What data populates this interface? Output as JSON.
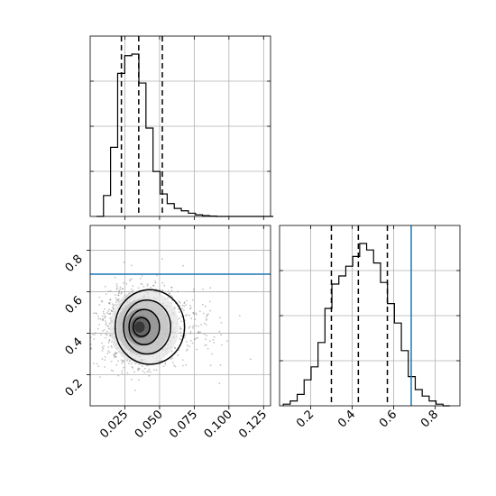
{
  "chart_data": {
    "type": "corner",
    "panels": [
      {
        "id": "hist_x",
        "type": "histogram",
        "xlim": [
          0.0,
          0.13
        ],
        "bins_start": 0.0045,
        "bin_width": 0.0051,
        "counts": [
          0.0,
          0.13,
          0.43,
          0.89,
          1.0,
          1.01,
          0.83,
          0.55,
          0.28,
          0.14,
          0.08,
          0.05,
          0.035,
          0.02,
          0.01,
          0.005,
          0.002,
          0.0,
          0.0,
          0.0,
          0.0,
          0.0,
          0.0,
          0.0,
          0.0
        ],
        "quantiles": [
          0.0225,
          0.035,
          0.052
        ]
      },
      {
        "id": "hist_y",
        "type": "histogram",
        "xlim": [
          0.05,
          0.92
        ],
        "bins_start": 0.068,
        "bin_width": 0.0335,
        "counts": [
          0.01,
          0.03,
          0.07,
          0.16,
          0.24,
          0.39,
          0.6,
          0.75,
          0.8,
          0.86,
          0.92,
          1.0,
          0.96,
          0.88,
          0.76,
          0.63,
          0.51,
          0.34,
          0.18,
          0.1,
          0.06,
          0.03,
          0.01,
          0.0
        ],
        "quantiles": [
          0.3,
          0.43,
          0.57
        ],
        "truth": 0.685
      },
      {
        "id": "scatter_2d",
        "type": "2d-density",
        "xlim": [
          0.0,
          0.13
        ],
        "ylim": [
          0.05,
          0.92
        ],
        "center": [
          0.035,
          0.43
        ],
        "truth_y": 0.685,
        "contours": [
          {
            "level": 0.5,
            "radii": [
              0.006,
              0.045
            ]
          },
          {
            "level": 1.0,
            "radii": [
              0.011,
              0.085
            ]
          },
          {
            "level": 1.5,
            "radii": [
              0.017,
              0.13
            ]
          },
          {
            "level": 2.0,
            "radii": [
              0.025,
              0.18
            ]
          }
        ]
      }
    ],
    "x_ticks": [
      "0.025",
      "0.050",
      "0.075",
      "0.100",
      "0.125"
    ],
    "x_tick_values": [
      0.025,
      0.05,
      0.075,
      0.1,
      0.125
    ],
    "y_ticks": [
      "0.2",
      "0.4",
      "0.6",
      "0.8"
    ],
    "y_tick_values": [
      0.2,
      0.4,
      0.6,
      0.8
    ],
    "y_hist_ticks": [
      "0.2",
      "0.4",
      "0.6",
      "0.8"
    ],
    "y_hist_tick_values": [
      0.2,
      0.4,
      0.6,
      0.8
    ]
  }
}
